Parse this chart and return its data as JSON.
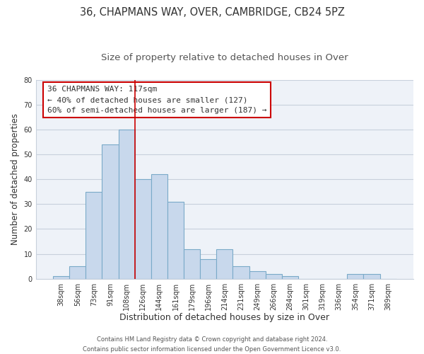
{
  "title": "36, CHAPMANS WAY, OVER, CAMBRIDGE, CB24 5PZ",
  "subtitle": "Size of property relative to detached houses in Over",
  "xlabel": "Distribution of detached houses by size in Over",
  "ylabel": "Number of detached properties",
  "categories": [
    "38sqm",
    "56sqm",
    "73sqm",
    "91sqm",
    "108sqm",
    "126sqm",
    "144sqm",
    "161sqm",
    "179sqm",
    "196sqm",
    "214sqm",
    "231sqm",
    "249sqm",
    "266sqm",
    "284sqm",
    "301sqm",
    "319sqm",
    "336sqm",
    "354sqm",
    "371sqm",
    "389sqm"
  ],
  "values": [
    1,
    5,
    35,
    54,
    60,
    40,
    42,
    31,
    12,
    8,
    12,
    5,
    3,
    2,
    1,
    0,
    0,
    0,
    2,
    2,
    0
  ],
  "bar_color": "#c8d8ec",
  "bar_edge_color": "#7aaac8",
  "vline_x": 4.5,
  "vline_color": "#cc0000",
  "annotation_box_text": "36 CHAPMANS WAY: 117sqm\n← 40% of detached houses are smaller (127)\n60% of semi-detached houses are larger (187) →",
  "annotation_box_color": "#cc0000",
  "ylim": [
    0,
    80
  ],
  "yticks": [
    0,
    10,
    20,
    30,
    40,
    50,
    60,
    70,
    80
  ],
  "grid_color": "#c8d0dc",
  "bg_color": "#eef2f8",
  "footer_line1": "Contains HM Land Registry data © Crown copyright and database right 2024.",
  "footer_line2": "Contains public sector information licensed under the Open Government Licence v3.0.",
  "title_fontsize": 10.5,
  "subtitle_fontsize": 9.5,
  "xlabel_fontsize": 9,
  "ylabel_fontsize": 8.5,
  "tick_fontsize": 7,
  "footer_fontsize": 6,
  "annotation_fontsize": 8
}
